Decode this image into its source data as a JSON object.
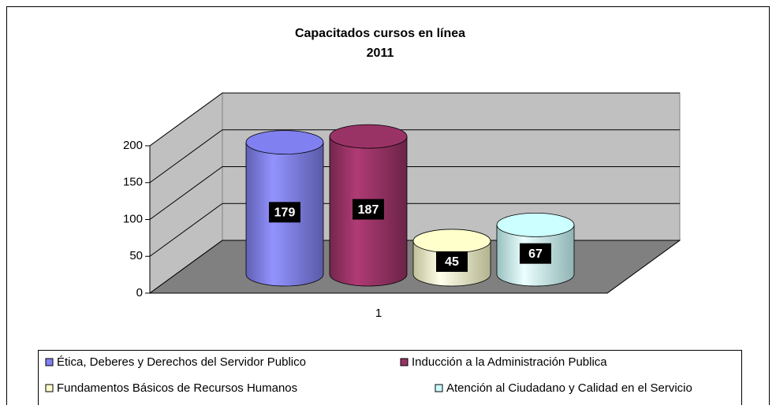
{
  "chart_data": {
    "type": "bar3d-cylinder",
    "title": "Capacitados cursos en línea",
    "subtitle": "2011",
    "categories": [
      "1"
    ],
    "series": [
      {
        "name": "Ética, Deberes y Derechos del Servidor Publico",
        "color": "#8080f0",
        "values": [
          179
        ]
      },
      {
        "name": "Inducción a la Administración Publica",
        "color": "#993366",
        "values": [
          187
        ]
      },
      {
        "name": "Fundamentos Básicos de Recursos Humanos",
        "color": "#ffffcc",
        "values": [
          45
        ]
      },
      {
        "name": "Atención al Ciudadano y Calidad en el Servicio",
        "color": "#ccffff",
        "values": [
          67
        ]
      }
    ],
    "ylim": [
      0,
      200
    ],
    "yticks": [
      0,
      50,
      100,
      150,
      200
    ],
    "grid": true
  }
}
